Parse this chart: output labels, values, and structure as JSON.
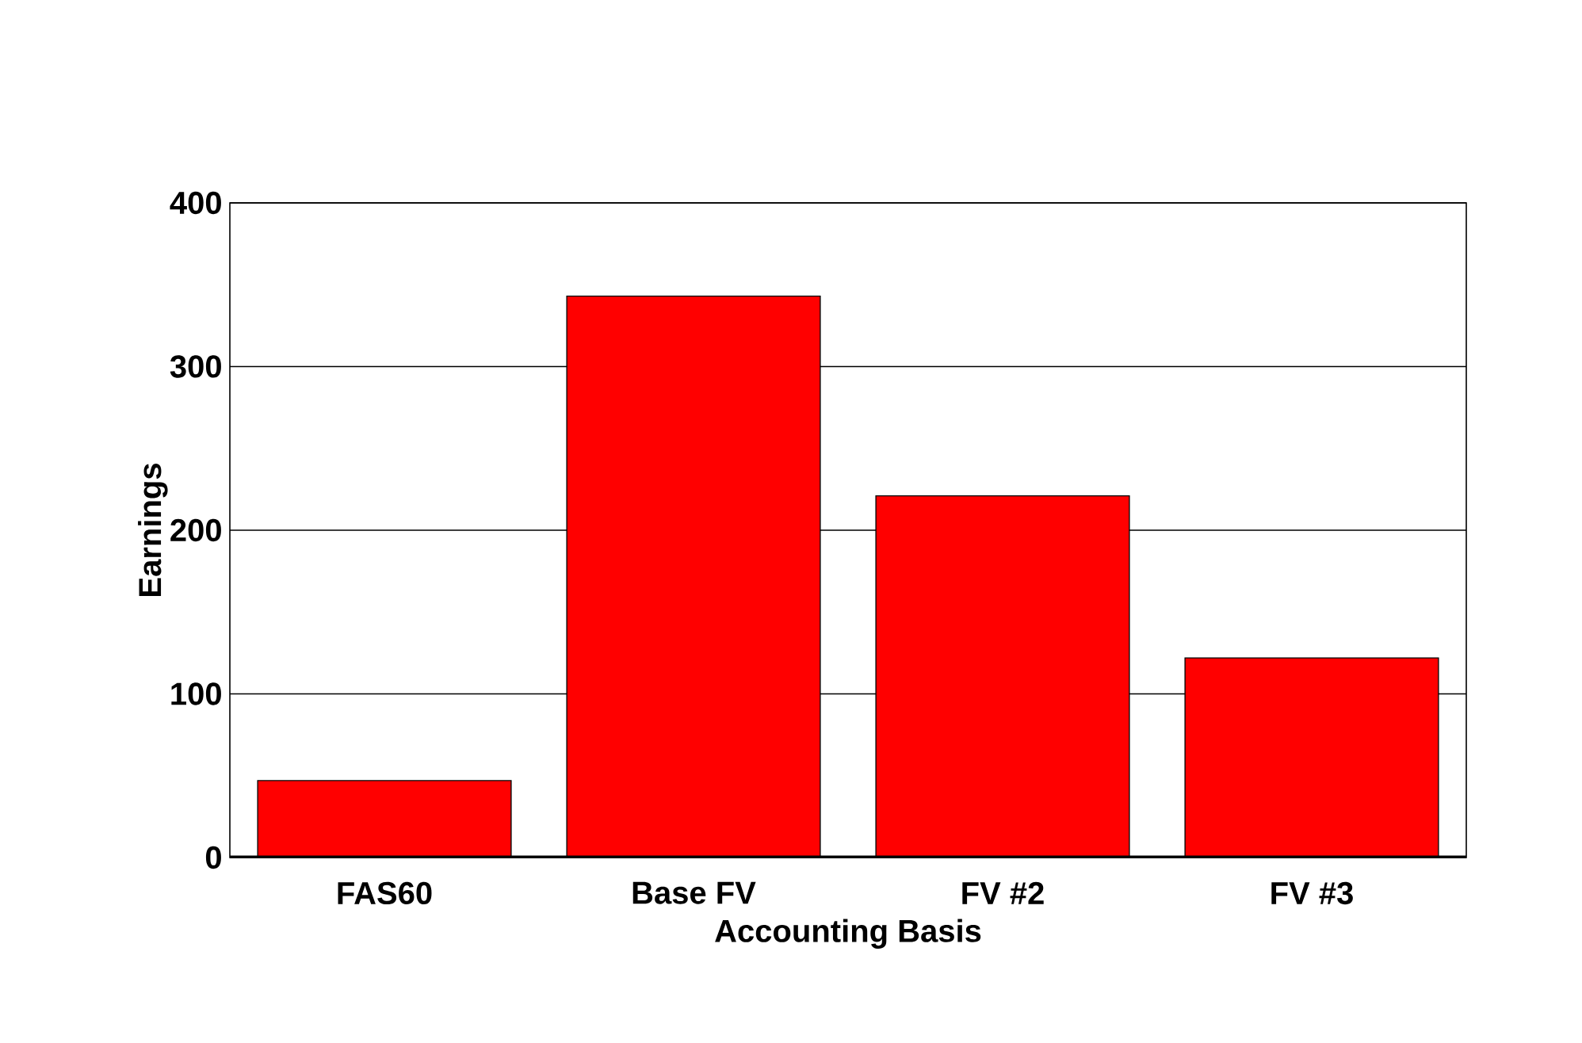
{
  "chart_data": {
    "type": "bar",
    "xlabel": "Accounting Basis",
    "ylabel": "Earnings",
    "categories": [
      "FAS60",
      "Base FV",
      "FV #2",
      "FV #3"
    ],
    "values": [
      47,
      343,
      221,
      122
    ],
    "color": "#ff0000",
    "ylim": [
      0,
      400
    ],
    "yticks": [
      0,
      100,
      200,
      300,
      400
    ],
    "grid": "y"
  }
}
